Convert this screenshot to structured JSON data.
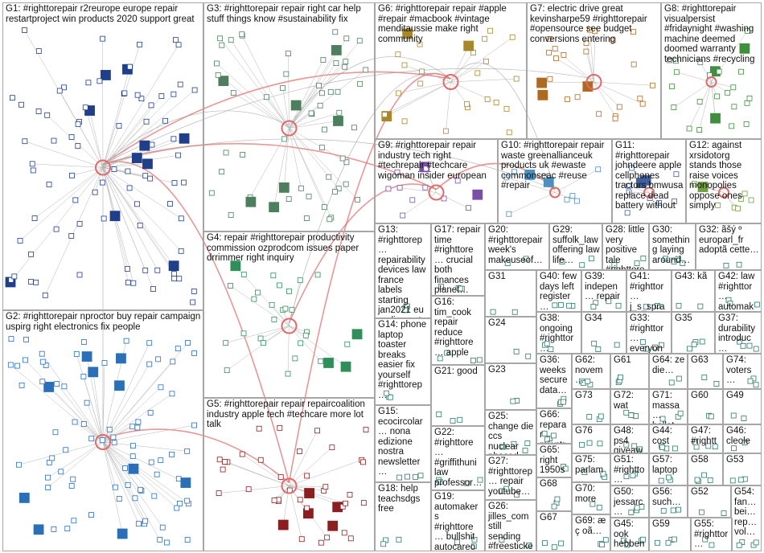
{
  "groups": [
    {
      "id": "G1",
      "label": "G1: #righttorepair r2reurope europe repair restartproject win products 2020 support great"
    },
    {
      "id": "G2",
      "label": "G2: #righttorepair nproctor buy repair campaign uspirg right electronics fix people"
    },
    {
      "id": "G3",
      "label": "G3: #righttorepair repair right car help stuff things know #sustainability fix"
    },
    {
      "id": "G4",
      "label": "G4: repair #righttorepair productivity commission ozprodcom issues paper drrimmer right inquiry"
    },
    {
      "id": "G5",
      "label": "G5: #righttorepair repair repaircoalition industry apple tech #techcare more lot talk"
    },
    {
      "id": "G6",
      "label": "G6: #righttorepair repair #apple #repair #macbook #vintage menditaussie make right community"
    },
    {
      "id": "G7",
      "label": "G7: electric drive great kevinsharpe59 #righttorepair #opensource see budget conversions entering"
    },
    {
      "id": "G8",
      "label": "G8: #righttorepair visualpersist #fridaynight #washing machine deemed doomed warranty technicians #recycling"
    },
    {
      "id": "G9",
      "label": "G9: #righttorepair repair industry tech right #techrepair #techcare wigoman insider european"
    },
    {
      "id": "G10",
      "label": "G10: #righttorepair repair waste greenallianceuk products uk #ewaste commonseac #reuse #repair"
    },
    {
      "id": "G11",
      "label": "G11: #righttorepair johndeere apple cellphones tractors bmwusa replace dead battery without"
    },
    {
      "id": "G12",
      "label": "G12: against xrsidotorg stands those raise voices monopolies oppose ones simply"
    },
    {
      "id": "G13",
      "label": "G13: #righttorep… repairability devices law france labels starting jan2021 eu parliament"
    },
    {
      "id": "G14",
      "label": "G14: phone laptop toaster breaks easier fix yourself #righttorep…"
    },
    {
      "id": "G15",
      "label": "G15: ecocircolar… nona edizione nostra newsletter…"
    },
    {
      "id": "G16",
      "label": "G16: tim_cook repair reduce #righttore… apple"
    },
    {
      "id": "G17",
      "label": "G17: repair time #righttore… crucial both finances planet…"
    },
    {
      "id": "G18",
      "label": "G18: help teachsdgs free"
    },
    {
      "id": "G19",
      "label": "G19: automakers #righttore… bullshit autocareo…"
    },
    {
      "id": "G20",
      "label": "G20: #righttorepair week's makeuseof…"
    },
    {
      "id": "G21",
      "label": "G21: good"
    },
    {
      "id": "G22",
      "label": "G22: #righttore… #griffithuni law professor…"
    },
    {
      "id": "G23",
      "label": "G23"
    },
    {
      "id": "G24",
      "label": "G24"
    },
    {
      "id": "G25",
      "label": "G25: change die ccs nuclear phased…"
    },
    {
      "id": "G26",
      "label": "G26: jilles_com still sending #freesticke…"
    },
    {
      "id": "G27",
      "label": "G27: #righttorep… repair youtube…"
    },
    {
      "id": "G28",
      "label": "G28: little very positive tale #righttore…"
    },
    {
      "id": "G29",
      "label": "G29: suffolk_law offering law life…"
    },
    {
      "id": "G30",
      "label": "G30: something laying around…"
    },
    {
      "id": "G31",
      "label": "G31"
    },
    {
      "id": "G32",
      "label": "G32: ãšý º europarl_fr adoptã cette…"
    },
    {
      "id": "G33",
      "label": "G33: #righttor… everyon…"
    },
    {
      "id": "G34",
      "label": "G34"
    },
    {
      "id": "G35",
      "label": "G35"
    },
    {
      "id": "G36",
      "label": "G36: weeks secure data…"
    },
    {
      "id": "G37",
      "label": "G37: durability introduc…"
    },
    {
      "id": "G38",
      "label": "G38: ongoing #righttor…"
    },
    {
      "id": "G39",
      "label": "G39: indepen… repair"
    },
    {
      "id": "G40",
      "label": "G40: few days left register…"
    },
    {
      "id": "G41",
      "label": "G41: #righttor… j_s_spra…"
    },
    {
      "id": "G42",
      "label": "G42: law #righttor… automak…"
    },
    {
      "id": "G43",
      "label": "G43: kã"
    },
    {
      "id": "G44",
      "label": "G44: cost"
    },
    {
      "id": "G45",
      "label": "G45: ook hebben…"
    },
    {
      "id": "G46",
      "label": "G46: cleole… repar…"
    },
    {
      "id": "G47",
      "label": "G47: #rightt… anche…"
    },
    {
      "id": "G48",
      "label": "G48: ps4 giveaw…"
    },
    {
      "id": "G49",
      "label": "G49"
    },
    {
      "id": "G50",
      "label": "G50: jessarc…"
    },
    {
      "id": "G51",
      "label": "G51: #rightto…"
    },
    {
      "id": "G52",
      "label": "G52"
    },
    {
      "id": "G53",
      "label": "G53"
    },
    {
      "id": "G54",
      "label": "G54: fan… bei… rep… vol…"
    },
    {
      "id": "G55",
      "label": "G55: #righttor…"
    },
    {
      "id": "G56",
      "label": "G56: such…"
    },
    {
      "id": "G57",
      "label": "G57: laptop"
    },
    {
      "id": "G58",
      "label": "G58"
    },
    {
      "id": "G59",
      "label": "G59"
    },
    {
      "id": "G60",
      "label": "G60"
    },
    {
      "id": "G61",
      "label": "G61"
    },
    {
      "id": "G62",
      "label": "G62: novem…"
    },
    {
      "id": "G63",
      "label": "G63"
    },
    {
      "id": "G64",
      "label": "G64: ze die…"
    },
    {
      "id": "G65",
      "label": "G65: right 1950s…"
    },
    {
      "id": "G66",
      "label": "G66: reparar mientr…"
    },
    {
      "id": "G67",
      "label": "G67"
    },
    {
      "id": "G68",
      "label": "G68"
    },
    {
      "id": "G69",
      "label": "G69: æ ç oã…"
    },
    {
      "id": "G70",
      "label": "G70: more"
    },
    {
      "id": "G71",
      "label": "G71: massa… ballot…"
    },
    {
      "id": "G72",
      "label": "G72: wat"
    },
    {
      "id": "G73",
      "label": "G73"
    },
    {
      "id": "G74",
      "label": "G74: voters…"
    },
    {
      "id": "G75",
      "label": "G75: parlam…"
    },
    {
      "id": "G76",
      "label": "G76"
    }
  ],
  "colors": {
    "border": "#a6a6a6",
    "edge": "#9a9a9a",
    "edge_highlight": "#e06a6a",
    "G1": "#1f3f8a",
    "G2": "#2a6fb8",
    "G3": "#4d7f5f",
    "G4": "#2f8f5a",
    "G5": "#8b1e1e",
    "G6": "#a8892a",
    "G7": "#b06a20",
    "G8": "#3f8f3f",
    "G9": "#7a4fa8",
    "G10": "#4d8fbf",
    "G11": "#3f5f9f",
    "G12": "#6f9f3f"
  }
}
